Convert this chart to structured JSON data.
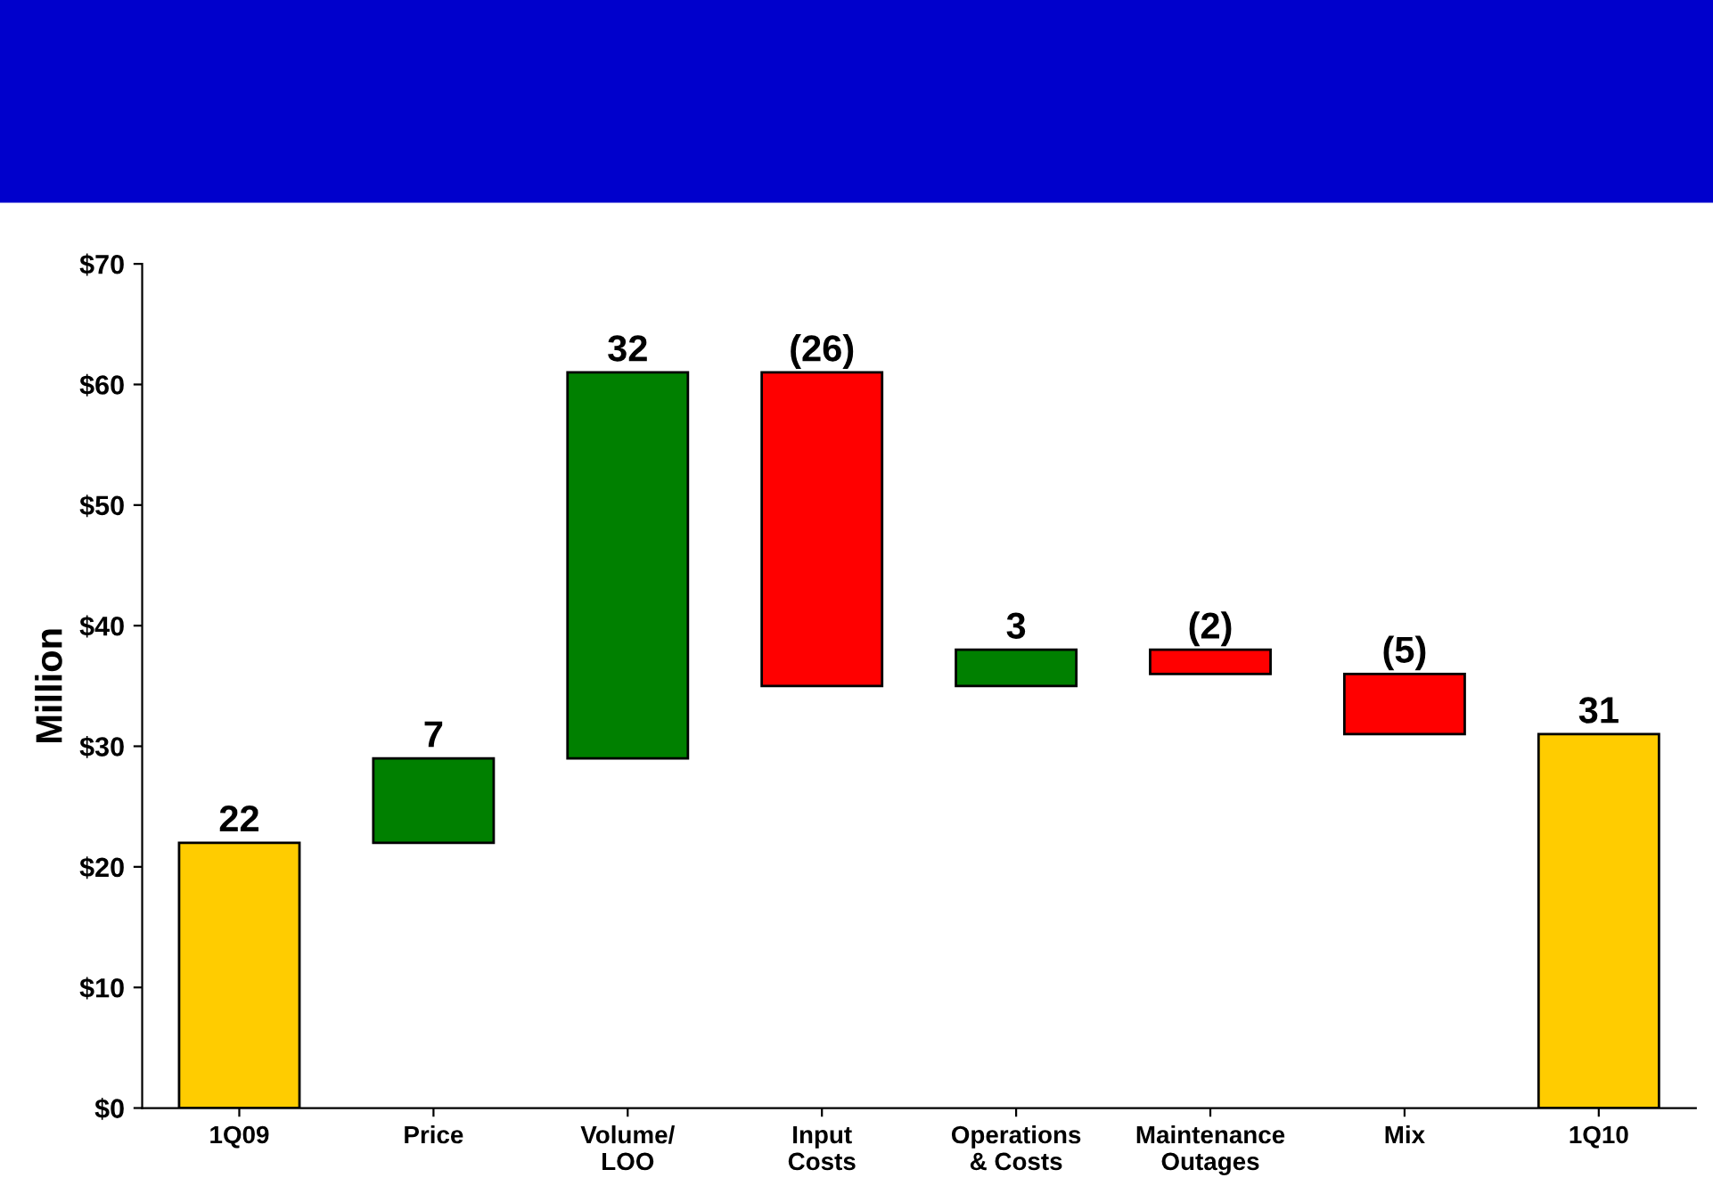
{
  "chart_data": {
    "type": "bar",
    "ylabel": "Million",
    "categories": [
      "1Q09",
      "Price",
      "Volume/\nLOO",
      "Input\nCosts",
      "Operations\n& Costs",
      "Maintenance\nOutages",
      "Mix",
      "1Q10"
    ],
    "values": [
      22,
      7,
      32,
      -26,
      3,
      -2,
      -5,
      31
    ],
    "base": [
      0,
      22,
      29,
      61,
      35,
      38,
      36,
      0
    ],
    "colors": [
      "#ffcc00",
      "#008000",
      "#008000",
      "#ff0000",
      "#008000",
      "#ff0000",
      "#ff0000",
      "#ffcc00"
    ],
    "value_labels": [
      "22",
      "7",
      "32",
      "(26)",
      "3",
      "(2)",
      "(5)",
      "31"
    ],
    "ylim": [
      0,
      70
    ],
    "yticks": [
      {
        "value": 0,
        "label": "$0"
      },
      {
        "value": 10,
        "label": "$10"
      },
      {
        "value": 20,
        "label": "$20"
      },
      {
        "value": 30,
        "label": "$30"
      },
      {
        "value": 40,
        "label": "$40"
      },
      {
        "value": 50,
        "label": "$50"
      },
      {
        "value": 60,
        "label": "$60"
      },
      {
        "value": 70,
        "label": "$70"
      }
    ],
    "grid": false,
    "legend": false
  }
}
